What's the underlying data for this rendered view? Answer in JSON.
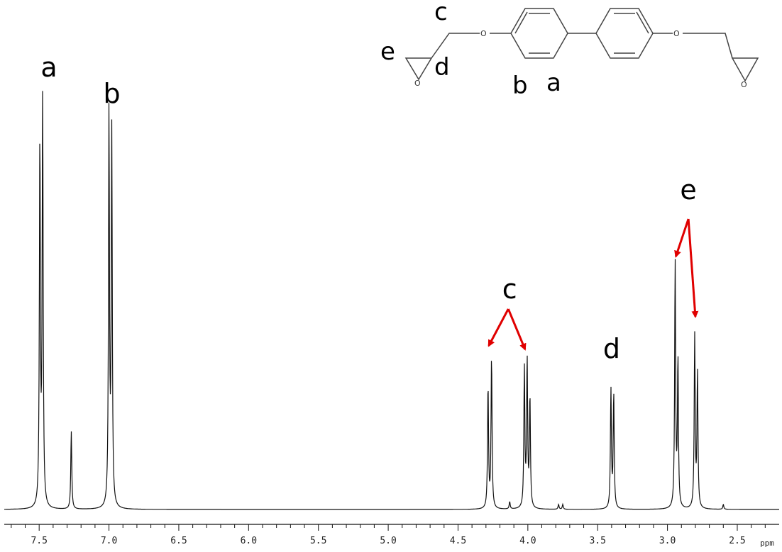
{
  "chart_data": {
    "type": "line",
    "title": "",
    "xlabel": "ppm",
    "ylabel": "",
    "x_reversed": true,
    "xlim": [
      7.75,
      2.2
    ],
    "ylim": [
      0,
      1.0
    ],
    "x_ticks": [
      "7.5",
      "7.0",
      "6.5",
      "6.0",
      "5.5",
      "5.0",
      "4.5",
      "4.0",
      "3.5",
      "3.0",
      "2.5"
    ],
    "x_tick_values": [
      7.5,
      7.0,
      6.5,
      6.0,
      5.5,
      5.0,
      4.5,
      4.0,
      3.5,
      3.0,
      2.5
    ],
    "grid": false,
    "peaks": [
      {
        "label": "",
        "lines": [
          {
            "x": 7.495,
            "y": 0.89
          },
          {
            "x": 7.475,
            "y": 1.0
          }
        ]
      },
      {
        "label": "",
        "lines": [
          {
            "x": 7.27,
            "y": 0.19
          }
        ]
      },
      {
        "label": "",
        "lines": [
          {
            "x": 7.0,
            "y": 0.96
          },
          {
            "x": 6.98,
            "y": 0.91
          }
        ]
      },
      {
        "label": "",
        "lines": [
          {
            "x": 4.285,
            "y": 0.3
          },
          {
            "x": 4.26,
            "y": 0.37
          }
        ]
      },
      {
        "label": "",
        "lines": [
          {
            "x": 4.025,
            "y": 0.34
          },
          {
            "x": 4.005,
            "y": 0.36
          },
          {
            "x": 3.985,
            "y": 0.27
          }
        ]
      },
      {
        "label": "",
        "lines": [
          {
            "x": 3.405,
            "y": 0.29
          },
          {
            "x": 3.385,
            "y": 0.28
          }
        ]
      },
      {
        "label": "",
        "lines": [
          {
            "x": 2.945,
            "y": 0.6
          },
          {
            "x": 2.925,
            "y": 0.36
          }
        ]
      },
      {
        "label": "",
        "lines": [
          {
            "x": 2.805,
            "y": 0.42
          },
          {
            "x": 2.785,
            "y": 0.33
          }
        ]
      },
      {
        "label": "",
        "lines": [
          {
            "x": 4.13,
            "y": 0.018
          },
          {
            "x": 3.78,
            "y": 0.012
          },
          {
            "x": 3.75,
            "y": 0.012
          },
          {
            "x": 2.6,
            "y": 0.012
          }
        ]
      }
    ],
    "annotations": [
      {
        "text": "a",
        "x": 7.47
      },
      {
        "text": "b",
        "x": 6.98
      },
      {
        "text": "c",
        "x": 4.14
      },
      {
        "text": "d",
        "x": 3.4
      },
      {
        "text": "e",
        "x": 2.85
      }
    ],
    "arrow_color": "#e00000"
  },
  "structure": {
    "labels": [
      "c",
      "e",
      "d",
      "b",
      "a"
    ],
    "atoms": [
      "O",
      "O",
      "O",
      "O"
    ]
  }
}
